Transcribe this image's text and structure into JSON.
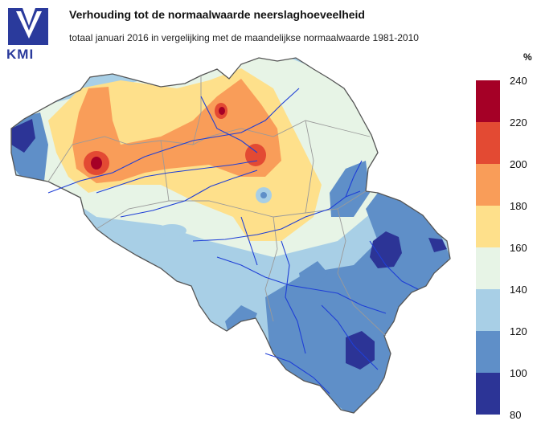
{
  "header": {
    "logo_text": "KMI",
    "title": "Verhouding tot de normaalwaarde neerslaghoeveelheid",
    "subtitle": "totaal januari 2016 in vergelijking met de maandelijkse normaalwaarde 1981-2010"
  },
  "legend": {
    "unit": "%",
    "ticks": [
      "240",
      "220",
      "200",
      "180",
      "160",
      "140",
      "120",
      "100",
      "80"
    ],
    "classes": [
      {
        "range": "220-240",
        "color": "#a50026"
      },
      {
        "range": "200-220",
        "color": "#e34a33"
      },
      {
        "range": "180-200",
        "color": "#f99d59"
      },
      {
        "range": "160-180",
        "color": "#fee08b"
      },
      {
        "range": "140-160",
        "color": "#e7f4e6"
      },
      {
        "range": "120-140",
        "color": "#a8cfe6"
      },
      {
        "range": "100-120",
        "color": "#5f8fc8"
      },
      {
        "range": "80-100",
        "color": "#2c3496"
      }
    ]
  }
}
